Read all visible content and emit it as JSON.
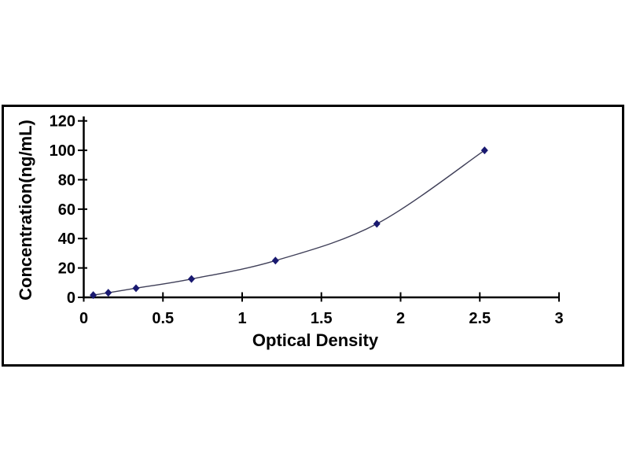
{
  "chart": {
    "frame_border_color": "#000000",
    "background_color": "#ffffff",
    "axis_color": "#000000",
    "text_color": "#000000"
  },
  "chart_data": {
    "type": "line",
    "title": "",
    "xlabel": "Optical Density",
    "ylabel": "Concentration(ng/mL)",
    "x": [
      0.06,
      0.155,
      0.33,
      0.68,
      1.21,
      1.85,
      2.53
    ],
    "y": [
      1.56,
      3.12,
      6.25,
      12.5,
      25,
      50,
      100
    ],
    "xlim": [
      0,
      3
    ],
    "ylim": [
      0,
      120
    ],
    "x_tick_step": 0.5,
    "y_tick_step": 20,
    "x_tick_labels": [
      "0",
      "0.5",
      "1",
      "1.5",
      "2",
      "2.5",
      "3"
    ],
    "y_tick_labels": [
      "0",
      "20",
      "40",
      "60",
      "80",
      "100",
      "120"
    ],
    "grid": false,
    "legend": "none",
    "marker": "diamond",
    "marker_color": "#191970",
    "line_color": "#3f3f58"
  }
}
